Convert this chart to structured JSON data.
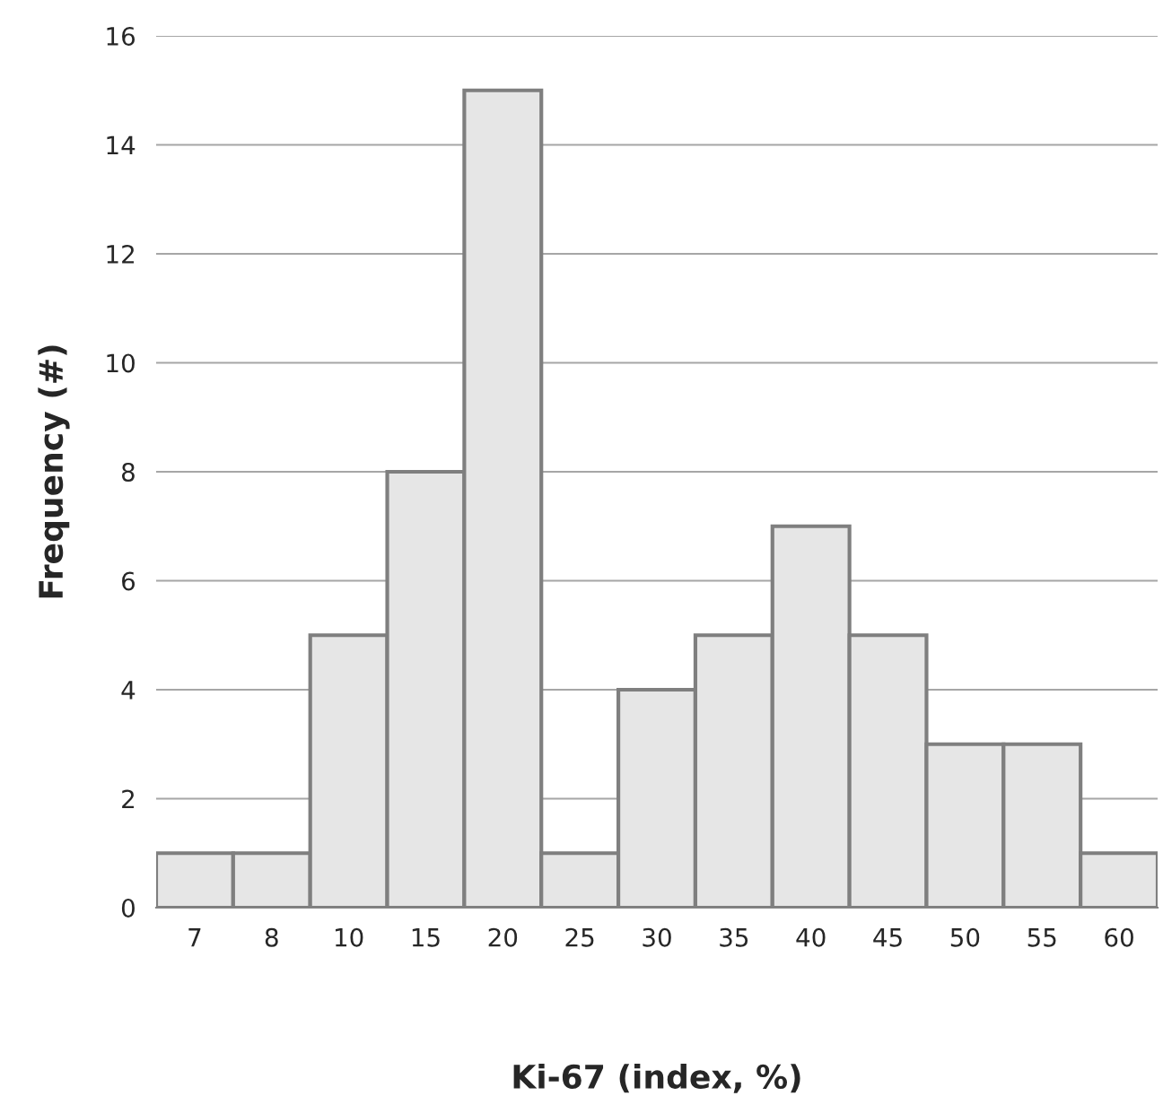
{
  "chart_data": {
    "type": "bar",
    "xlabel": "Ki-67 (index, %)",
    "ylabel": "Frequency (#)",
    "categories": [
      "7",
      "8",
      "10",
      "15",
      "20",
      "25",
      "30",
      "35",
      "40",
      "45",
      "50",
      "55",
      "60"
    ],
    "values": [
      1,
      1,
      5,
      8,
      15,
      1,
      4,
      5,
      7,
      5,
      3,
      3,
      1
    ],
    "color": "#e6e6e6",
    "ylim": [
      0,
      16
    ],
    "yticks": [
      0,
      2,
      4,
      6,
      8,
      10,
      12,
      14,
      16
    ],
    "grid": "y"
  }
}
